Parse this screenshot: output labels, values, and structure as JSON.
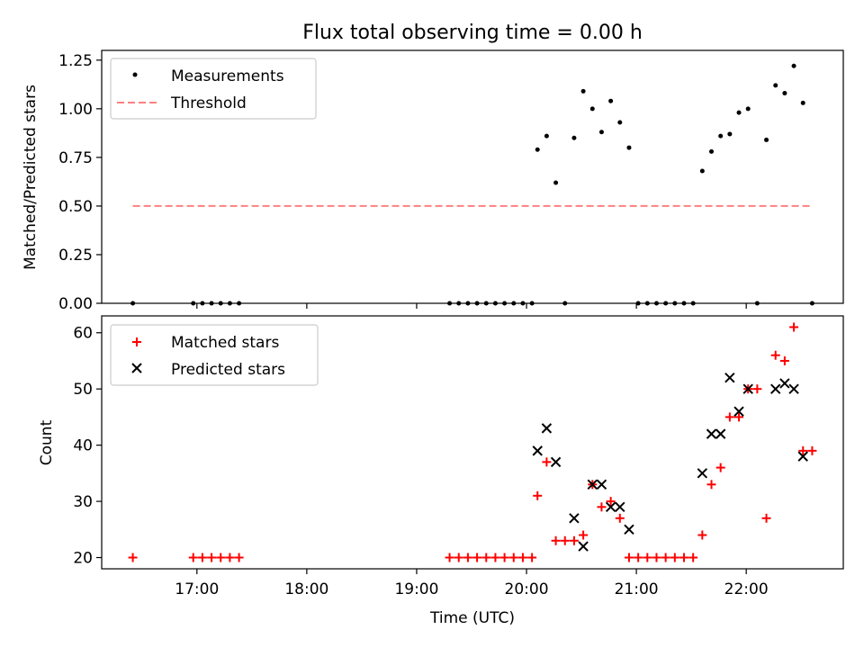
{
  "chart_data": [
    {
      "type": "scatter",
      "title": "Flux total observing time = 0.00 h",
      "xlabel": "",
      "ylabel": "Matched/Predicted stars",
      "xlim": [
        "16:08",
        "22:53"
      ],
      "ylim": [
        0,
        1.3
      ],
      "yticks": [
        "0.00",
        "0.25",
        "0.50",
        "0.75",
        "1.00",
        "1.25"
      ],
      "grid": false,
      "legend": "upper left",
      "series": [
        {
          "name": "Measurements",
          "marker": "dot",
          "color": "#000000",
          "points": [
            [
              "16:25",
              0.0
            ],
            [
              "16:58",
              0.0
            ],
            [
              "17:03",
              0.0
            ],
            [
              "17:08",
              0.0
            ],
            [
              "17:13",
              0.0
            ],
            [
              "17:18",
              0.0
            ],
            [
              "17:23",
              0.0
            ],
            [
              "19:18",
              0.0
            ],
            [
              "19:23",
              0.0
            ],
            [
              "19:28",
              0.0
            ],
            [
              "19:33",
              0.0
            ],
            [
              "19:38",
              0.0
            ],
            [
              "19:43",
              0.0
            ],
            [
              "19:48",
              0.0
            ],
            [
              "19:53",
              0.0
            ],
            [
              "19:58",
              0.0
            ],
            [
              "20:03",
              0.0
            ],
            [
              "20:06",
              0.79
            ],
            [
              "20:11",
              0.86
            ],
            [
              "20:16",
              0.62
            ],
            [
              "20:21",
              0.0
            ],
            [
              "20:26",
              0.85
            ],
            [
              "20:31",
              1.09
            ],
            [
              "20:36",
              1.0
            ],
            [
              "20:41",
              0.88
            ],
            [
              "20:46",
              1.04
            ],
            [
              "20:51",
              0.93
            ],
            [
              "20:56",
              0.8
            ],
            [
              "21:01",
              0.0
            ],
            [
              "21:06",
              0.0
            ],
            [
              "21:11",
              0.0
            ],
            [
              "21:16",
              0.0
            ],
            [
              "21:21",
              0.0
            ],
            [
              "21:26",
              0.0
            ],
            [
              "21:31",
              0.0
            ],
            [
              "21:36",
              0.68
            ],
            [
              "21:41",
              0.78
            ],
            [
              "21:46",
              0.86
            ],
            [
              "21:51",
              0.87
            ],
            [
              "21:56",
              0.98
            ],
            [
              "22:01",
              1.0
            ],
            [
              "22:06",
              0.0
            ],
            [
              "22:11",
              0.84
            ],
            [
              "22:16",
              1.12
            ],
            [
              "22:21",
              1.08
            ],
            [
              "22:26",
              1.22
            ],
            [
              "22:31",
              1.03
            ],
            [
              "22:36",
              0.0
            ]
          ]
        },
        {
          "name": "Threshold",
          "marker": "dashed-line",
          "color": "#ff8080",
          "points": [
            [
              "16:25",
              0.5
            ],
            [
              "22:36",
              0.5
            ]
          ]
        }
      ]
    },
    {
      "type": "scatter",
      "title": "",
      "xlabel": "Time (UTC)",
      "ylabel": "Count",
      "xlim": [
        "16:08",
        "22:53"
      ],
      "ylim": [
        18,
        63
      ],
      "yticks": [
        "20",
        "30",
        "40",
        "50",
        "60"
      ],
      "xticks": [
        "17:00",
        "18:00",
        "19:00",
        "20:00",
        "21:00",
        "22:00"
      ],
      "grid": false,
      "legend": "upper left",
      "series": [
        {
          "name": "Matched stars",
          "marker": "plus",
          "color": "#ff0000",
          "points": [
            [
              "16:25",
              20
            ],
            [
              "16:58",
              20
            ],
            [
              "17:03",
              20
            ],
            [
              "17:08",
              20
            ],
            [
              "17:13",
              20
            ],
            [
              "17:18",
              20
            ],
            [
              "17:23",
              20
            ],
            [
              "19:18",
              20
            ],
            [
              "19:23",
              20
            ],
            [
              "19:28",
              20
            ],
            [
              "19:33",
              20
            ],
            [
              "19:38",
              20
            ],
            [
              "19:43",
              20
            ],
            [
              "19:48",
              20
            ],
            [
              "19:53",
              20
            ],
            [
              "19:58",
              20
            ],
            [
              "20:03",
              20
            ],
            [
              "20:06",
              31
            ],
            [
              "20:11",
              37
            ],
            [
              "20:16",
              23
            ],
            [
              "20:21",
              23
            ],
            [
              "20:26",
              23
            ],
            [
              "20:31",
              24
            ],
            [
              "20:36",
              33
            ],
            [
              "20:41",
              29
            ],
            [
              "20:46",
              30
            ],
            [
              "20:51",
              27
            ],
            [
              "20:56",
              20
            ],
            [
              "21:01",
              20
            ],
            [
              "21:06",
              20
            ],
            [
              "21:11",
              20
            ],
            [
              "21:16",
              20
            ],
            [
              "21:21",
              20
            ],
            [
              "21:26",
              20
            ],
            [
              "21:31",
              20
            ],
            [
              "21:36",
              24
            ],
            [
              "21:41",
              33
            ],
            [
              "21:46",
              36
            ],
            [
              "21:51",
              45
            ],
            [
              "21:56",
              45
            ],
            [
              "22:01",
              50
            ],
            [
              "22:06",
              50
            ],
            [
              "22:11",
              27
            ],
            [
              "22:16",
              56
            ],
            [
              "22:21",
              55
            ],
            [
              "22:26",
              61
            ],
            [
              "22:31",
              39
            ],
            [
              "22:36",
              39
            ]
          ]
        },
        {
          "name": "Predicted stars",
          "marker": "x",
          "color": "#000000",
          "points": [
            [
              "20:06",
              39
            ],
            [
              "20:11",
              43
            ],
            [
              "20:16",
              37
            ],
            [
              "20:26",
              27
            ],
            [
              "20:31",
              22
            ],
            [
              "20:36",
              33
            ],
            [
              "20:41",
              33
            ],
            [
              "20:46",
              29
            ],
            [
              "20:51",
              29
            ],
            [
              "20:56",
              25
            ],
            [
              "21:36",
              35
            ],
            [
              "21:41",
              42
            ],
            [
              "21:46",
              42
            ],
            [
              "21:51",
              52
            ],
            [
              "21:56",
              46
            ],
            [
              "22:01",
              50
            ],
            [
              "22:16",
              50
            ],
            [
              "22:21",
              51
            ],
            [
              "22:26",
              50
            ],
            [
              "22:31",
              38
            ]
          ]
        }
      ]
    }
  ]
}
